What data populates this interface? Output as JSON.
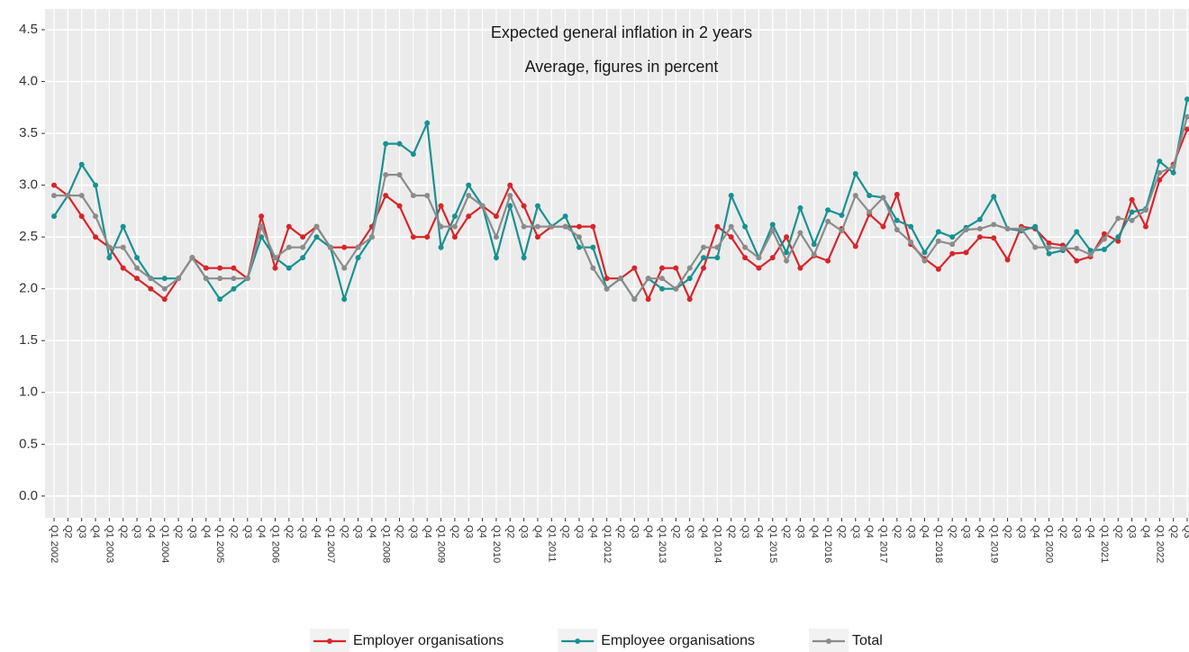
{
  "chart_data": {
    "type": "line",
    "title": "Expected general inflation in 2 years",
    "subtitle": "Average, figures in percent",
    "categories": [
      "Q1 2002",
      "Q2",
      "Q3",
      "Q4",
      "Q1 2003",
      "Q2",
      "Q3",
      "Q4",
      "Q1 2004",
      "Q2",
      "Q3",
      "Q4",
      "Q1 2005",
      "Q2",
      "Q3",
      "Q4",
      "Q1 2006",
      "Q2",
      "Q3",
      "Q4",
      "Q1 2007",
      "Q2",
      "Q3",
      "Q4",
      "Q1 2008",
      "Q2",
      "Q3",
      "Q4",
      "Q1 2009",
      "Q2",
      "Q3",
      "Q4",
      "Q1 2010",
      "Q2",
      "Q3",
      "Q4",
      "Q1 2011",
      "Q2",
      "Q3",
      "Q4",
      "Q1 2012",
      "Q2",
      "Q3",
      "Q4",
      "Q1 2013",
      "Q2",
      "Q3",
      "Q4",
      "Q1 2014",
      "Q2",
      "Q3",
      "Q4",
      "Q1 2015",
      "Q2",
      "Q3",
      "Q4",
      "Q1 2016",
      "Q2",
      "Q3",
      "Q4",
      "Q1 2017",
      "Q2",
      "Q3",
      "Q4",
      "Q1 2018",
      "Q2",
      "Q3",
      "Q4",
      "Q1 2019",
      "Q2",
      "Q3",
      "Q4",
      "Q1 2020",
      "Q2",
      "Q3",
      "Q4",
      "Q1 2021",
      "Q2",
      "Q3",
      "Q4",
      "Q1 2022",
      "Q2",
      "Q3"
    ],
    "series": [
      {
        "name": "Employer organisations",
        "color": "#d7262b",
        "values": [
          3.0,
          2.9,
          2.7,
          2.5,
          2.4,
          2.2,
          2.1,
          2.0,
          1.9,
          2.1,
          2.3,
          2.2,
          2.2,
          2.2,
          2.1,
          2.7,
          2.2,
          2.6,
          2.5,
          2.6,
          2.4,
          2.4,
          2.4,
          2.6,
          2.9,
          2.8,
          2.5,
          2.5,
          2.8,
          2.5,
          2.7,
          2.8,
          2.7,
          3.0,
          2.8,
          2.5,
          2.6,
          2.6,
          2.6,
          2.6,
          2.1,
          2.1,
          2.2,
          1.9,
          2.2,
          2.2,
          1.9,
          2.2,
          2.6,
          2.5,
          2.3,
          2.2,
          2.3,
          2.5,
          2.2,
          2.32,
          2.27,
          2.58,
          2.41,
          2.72,
          2.6,
          2.91,
          2.43,
          2.29,
          2.19,
          2.34,
          2.35,
          2.5,
          2.49,
          2.28,
          2.6,
          2.58,
          2.44,
          2.42,
          2.27,
          2.31,
          2.53,
          2.46,
          2.86,
          2.6,
          3.05,
          3.2,
          3.54
        ]
      },
      {
        "name": "Employee organisations",
        "color": "#1a9191",
        "values": [
          2.7,
          2.9,
          3.2,
          3.0,
          2.3,
          2.6,
          2.3,
          2.1,
          2.1,
          2.1,
          2.3,
          2.1,
          1.9,
          2.0,
          2.1,
          2.5,
          2.3,
          2.2,
          2.3,
          2.5,
          2.4,
          1.9,
          2.3,
          2.5,
          3.4,
          3.4,
          3.3,
          3.6,
          2.4,
          2.7,
          3.0,
          2.8,
          2.3,
          2.8,
          2.3,
          2.8,
          2.6,
          2.7,
          2.4,
          2.4,
          2.0,
          2.1,
          1.9,
          2.1,
          2.0,
          2.0,
          2.1,
          2.3,
          2.3,
          2.9,
          2.6,
          2.3,
          2.62,
          2.35,
          2.78,
          2.43,
          2.76,
          2.71,
          3.11,
          2.9,
          2.88,
          2.66,
          2.6,
          2.35,
          2.55,
          2.5,
          2.59,
          2.67,
          2.89,
          2.58,
          2.56,
          2.6,
          2.34,
          2.37,
          2.55,
          2.37,
          2.38,
          2.5,
          2.74,
          2.77,
          3.23,
          3.12,
          3.83
        ]
      },
      {
        "name": "Total",
        "color": "#8c8c8c",
        "values": [
          2.9,
          2.9,
          2.9,
          2.7,
          2.4,
          2.4,
          2.2,
          2.1,
          2.0,
          2.1,
          2.3,
          2.1,
          2.1,
          2.1,
          2.1,
          2.6,
          2.3,
          2.4,
          2.4,
          2.6,
          2.4,
          2.2,
          2.4,
          2.5,
          3.1,
          3.1,
          2.9,
          2.9,
          2.6,
          2.6,
          2.9,
          2.8,
          2.5,
          2.9,
          2.6,
          2.6,
          2.6,
          2.6,
          2.5,
          2.2,
          2.0,
          2.1,
          1.9,
          2.1,
          2.1,
          2.0,
          2.2,
          2.4,
          2.4,
          2.6,
          2.4,
          2.3,
          2.56,
          2.27,
          2.54,
          2.33,
          2.65,
          2.56,
          2.9,
          2.74,
          2.88,
          2.57,
          2.45,
          2.27,
          2.46,
          2.43,
          2.57,
          2.58,
          2.62,
          2.58,
          2.58,
          2.4,
          2.4,
          2.39,
          2.39,
          2.33,
          2.48,
          2.68,
          2.66,
          2.76,
          3.12,
          3.18,
          3.66
        ]
      }
    ],
    "ylim": [
      -0.21,
      4.7
    ],
    "yticks": [
      {
        "value": 0,
        "label": "0.0"
      },
      0.5,
      {
        "value": 1,
        "label": "1.0"
      },
      1.5,
      {
        "value": 2,
        "label": "2.0"
      },
      2.5,
      {
        "value": 3,
        "label": "3.0"
      },
      3.5,
      {
        "value": 4,
        "label": "4.0"
      },
      4.5
    ],
    "grid": true,
    "legend": "bottom"
  }
}
